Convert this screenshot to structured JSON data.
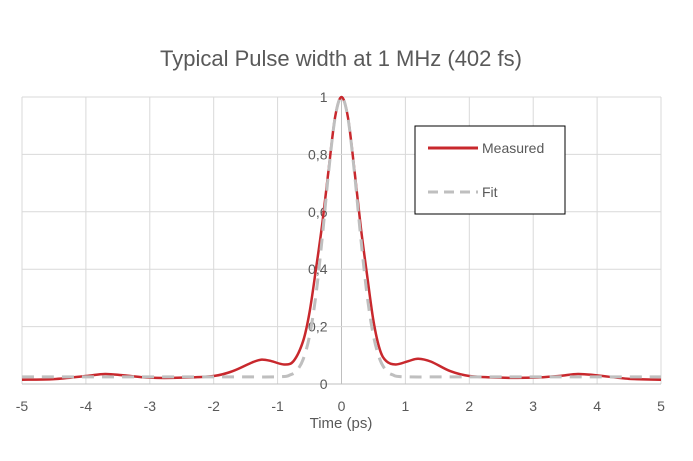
{
  "chart_data": {
    "type": "line",
    "title": "Typical Pulse width at 1 MHz (402 fs)",
    "xlabel": "Time (ps)",
    "ylabel": "",
    "xlim": [
      -5,
      5
    ],
    "ylim": [
      0,
      1
    ],
    "x_ticks": [
      "-5",
      "-4",
      "-3",
      "-2",
      "-1",
      "0",
      "1",
      "2",
      "3",
      "4",
      "5"
    ],
    "y_ticks": [
      "0",
      "0,2",
      "0,4",
      "0,6",
      "0,8",
      "1"
    ],
    "grid": true,
    "legend_position": "top-right",
    "colors": {
      "measured": "#c8282d",
      "fit": "#bfbfbf",
      "grid": "#d9d9d9",
      "text": "#595959"
    },
    "series": [
      {
        "name": "Measured",
        "style": "solid",
        "x": [
          -5,
          -4.5,
          -4,
          -3.7,
          -3.4,
          -3,
          -2.5,
          -2,
          -1.7,
          -1.4,
          -1.25,
          -1.1,
          -0.9,
          -0.75,
          -0.6,
          -0.5,
          -0.4,
          -0.3,
          -0.2,
          -0.1,
          0,
          0.1,
          0.2,
          0.3,
          0.4,
          0.5,
          0.6,
          0.7,
          0.85,
          1.05,
          1.2,
          1.4,
          1.7,
          2,
          2.5,
          3,
          3.4,
          3.7,
          4,
          4.5,
          5
        ],
        "y": [
          0.015,
          0.017,
          0.028,
          0.035,
          0.03,
          0.022,
          0.022,
          0.028,
          0.045,
          0.075,
          0.085,
          0.08,
          0.068,
          0.08,
          0.15,
          0.25,
          0.4,
          0.56,
          0.75,
          0.93,
          1,
          0.93,
          0.75,
          0.55,
          0.38,
          0.22,
          0.12,
          0.08,
          0.068,
          0.08,
          0.088,
          0.078,
          0.045,
          0.028,
          0.022,
          0.022,
          0.028,
          0.035,
          0.03,
          0.018,
          0.015
        ]
      },
      {
        "name": "Fit",
        "style": "dashed",
        "x": [
          -5,
          -2,
          -1,
          -0.8,
          -0.7,
          -0.6,
          -0.5,
          -0.4,
          -0.3,
          -0.2,
          -0.1,
          0,
          0.1,
          0.2,
          0.3,
          0.4,
          0.5,
          0.6,
          0.7,
          0.8,
          1,
          2,
          5
        ],
        "y": [
          0.025,
          0.025,
          0.025,
          0.032,
          0.047,
          0.086,
          0.168,
          0.31,
          0.513,
          0.742,
          0.928,
          1,
          0.928,
          0.742,
          0.513,
          0.31,
          0.168,
          0.086,
          0.047,
          0.032,
          0.025,
          0.025,
          0.025
        ]
      }
    ]
  }
}
